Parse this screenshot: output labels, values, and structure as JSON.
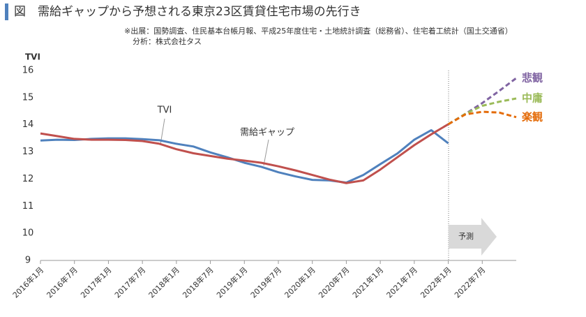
{
  "chart_data": {
    "type": "line",
    "title": "図　需給ギャップから予想される東京23区賃貸住宅市場の先行き",
    "source": [
      "※出展：国勢調査、住民基本台帳月報、平成25年度住宅・土地統計調査（総務省）、住宅着工統計（国土交通省）",
      "分析：株式会社タス"
    ],
    "y_label": "TVI",
    "forecast_label": "予測",
    "categories": [
      "2016年1月",
      null,
      "2016年7月",
      null,
      "2017年1月",
      null,
      "2017年7月",
      null,
      "2018年1月",
      null,
      "2018年7月",
      null,
      "2019年1月",
      null,
      "2019年7月",
      null,
      "2020年1月",
      null,
      "2020年7月",
      null,
      "2021年1月",
      null,
      "2021年7月",
      null,
      "2022年1月",
      null,
      "2022年7月",
      null,
      null
    ],
    "ylim": [
      9,
      16
    ],
    "yticks": [
      9,
      10,
      11,
      12,
      13,
      14,
      15,
      16
    ],
    "grid": false,
    "series": [
      {
        "name": "TVI",
        "color": "#4f81bd",
        "line_style": "solid",
        "values": [
          13.42,
          13.45,
          13.44,
          13.48,
          13.5,
          13.5,
          13.47,
          13.43,
          13.3,
          13.2,
          12.98,
          12.8,
          12.6,
          12.45,
          12.25,
          12.1,
          11.97,
          11.95,
          11.87,
          12.15,
          12.55,
          12.94,
          13.45,
          13.8,
          13.32,
          null,
          null,
          null,
          null
        ]
      },
      {
        "name": "需給ギャップ",
        "color": "#c0504d",
        "line_style": "solid",
        "values": [
          13.68,
          13.58,
          13.48,
          13.45,
          13.45,
          13.44,
          13.4,
          13.3,
          13.1,
          12.95,
          12.85,
          12.75,
          12.68,
          12.6,
          12.47,
          12.32,
          12.15,
          11.98,
          11.85,
          11.95,
          12.35,
          12.8,
          13.25,
          13.65,
          14.02,
          null,
          null,
          null,
          null
        ]
      },
      {
        "name": "悲観",
        "color": "#8064a2",
        "line_style": "dashed",
        "values": [
          null,
          null,
          null,
          null,
          null,
          null,
          null,
          null,
          null,
          null,
          null,
          null,
          null,
          null,
          null,
          null,
          null,
          null,
          null,
          null,
          null,
          null,
          null,
          null,
          14.02,
          14.4,
          14.8,
          15.25,
          15.72
        ]
      },
      {
        "name": "中庸",
        "color": "#9bbb59",
        "line_style": "dashed",
        "values": [
          null,
          null,
          null,
          null,
          null,
          null,
          null,
          null,
          null,
          null,
          null,
          null,
          null,
          null,
          null,
          null,
          null,
          null,
          null,
          null,
          null,
          null,
          null,
          null,
          14.02,
          14.4,
          14.7,
          14.85,
          14.97
        ]
      },
      {
        "name": "楽観",
        "color": "#e46c0a",
        "line_style": "dashed",
        "values": [
          null,
          null,
          null,
          null,
          null,
          null,
          null,
          null,
          null,
          null,
          null,
          null,
          null,
          null,
          null,
          null,
          null,
          null,
          null,
          null,
          null,
          null,
          null,
          null,
          14.02,
          14.38,
          14.48,
          14.45,
          14.28
        ]
      }
    ]
  }
}
